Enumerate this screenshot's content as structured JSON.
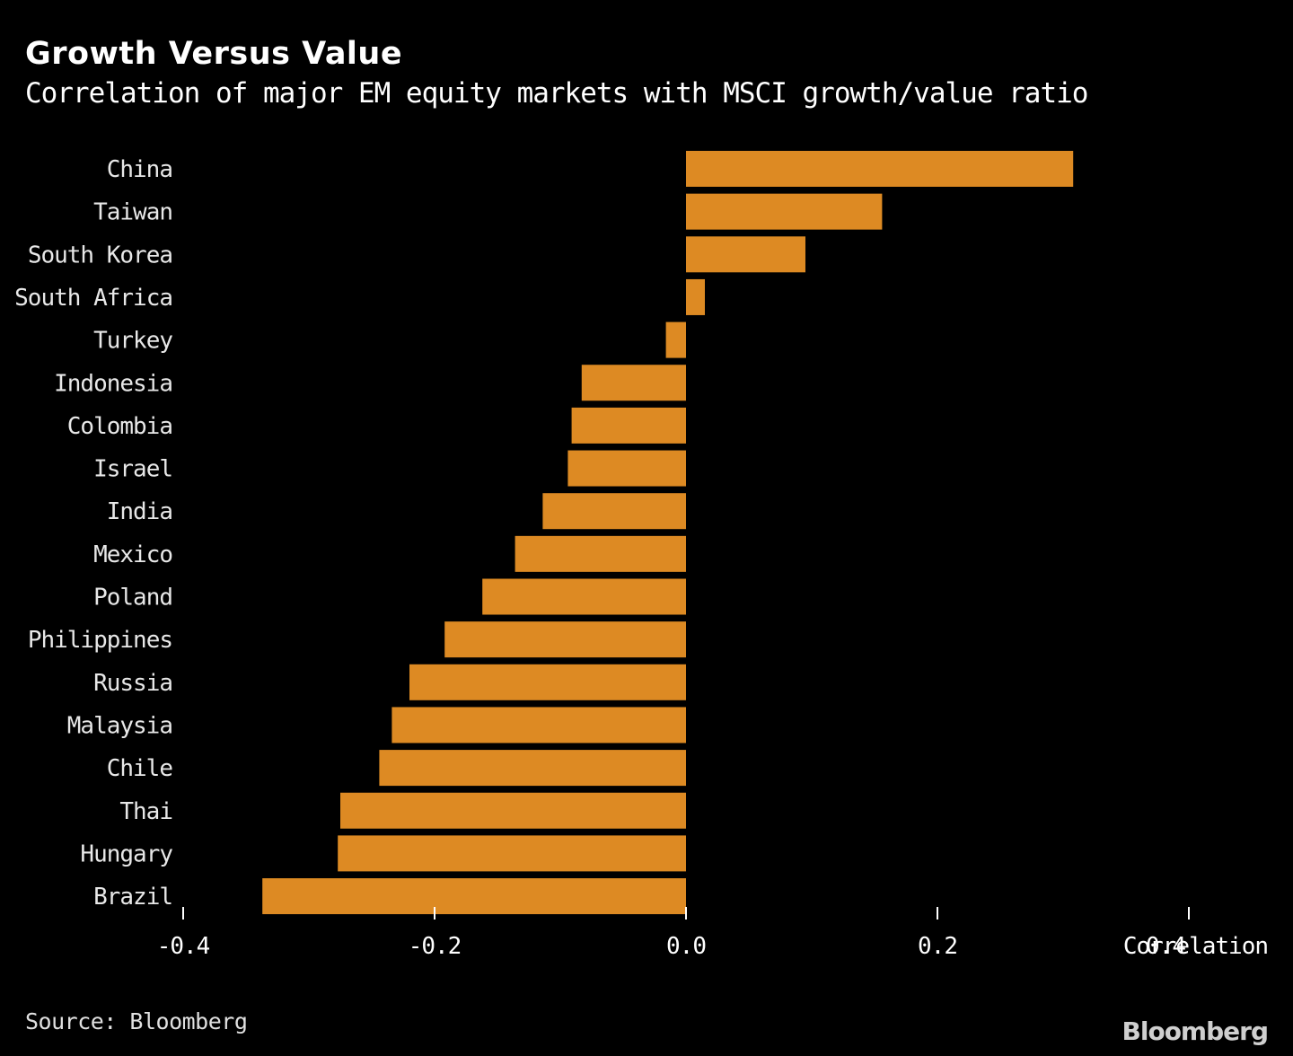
{
  "header": {
    "title": "Growth Versus Value",
    "subtitle": "Correlation of major EM equity markets with MSCI growth/value ratio"
  },
  "footer": {
    "source": "Source: Bloomberg",
    "brand": "Bloomberg"
  },
  "colors": {
    "background": "#000000",
    "bar": "#dd8a23",
    "text": "#ffffff",
    "axis": "#ffffff"
  },
  "chart_data": {
    "type": "bar",
    "orientation": "horizontal",
    "title": "Growth Versus Value",
    "subtitle": "Correlation of major EM equity markets with MSCI growth/value ratio",
    "xlabel": "Correlation",
    "ylabel": "",
    "xlim": [
      -0.4,
      0.4
    ],
    "x_ticks": [
      -0.4,
      -0.2,
      0.0,
      0.2,
      0.4
    ],
    "x_tick_labels": [
      "-0.4",
      "-0.2",
      "0.0",
      "0.2",
      "0.4"
    ],
    "grid": false,
    "legend": "none",
    "categories": [
      "China",
      "Taiwan",
      "South Korea",
      "South Africa",
      "Turkey",
      "Indonesia",
      "Colombia",
      "Israel",
      "India",
      "Mexico",
      "Poland",
      "Philippines",
      "Russia",
      "Malaysia",
      "Chile",
      "Thai",
      "Hungary",
      "Brazil"
    ],
    "values": [
      0.308,
      0.156,
      0.095,
      0.015,
      -0.016,
      -0.083,
      -0.091,
      -0.094,
      -0.114,
      -0.136,
      -0.162,
      -0.192,
      -0.22,
      -0.234,
      -0.244,
      -0.275,
      -0.277,
      -0.337
    ]
  }
}
